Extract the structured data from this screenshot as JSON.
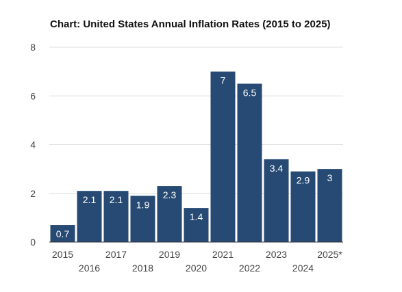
{
  "chart_data": {
    "type": "bar",
    "title": "Chart: United States Annual Inflation Rates (2015 to 2025)",
    "categories": [
      "2015",
      "2016",
      "2017",
      "2018",
      "2019",
      "2020",
      "2021",
      "2022",
      "2023",
      "2024",
      "2025*"
    ],
    "values": [
      0.7,
      2.1,
      2.1,
      1.9,
      2.3,
      1.4,
      7,
      6.5,
      3.4,
      2.9,
      3
    ],
    "data_labels": [
      "0.7",
      "2.1",
      "2.1",
      "1.9",
      "2.3",
      "1.4",
      "7",
      "6.5",
      "3.4",
      "2.9",
      "3"
    ],
    "y_ticks": [
      "0",
      "2",
      "4",
      "6",
      "8"
    ],
    "ylim": [
      0,
      8
    ],
    "grid": true,
    "bar_color": "#264a73",
    "xlabel": "",
    "ylabel": ""
  }
}
